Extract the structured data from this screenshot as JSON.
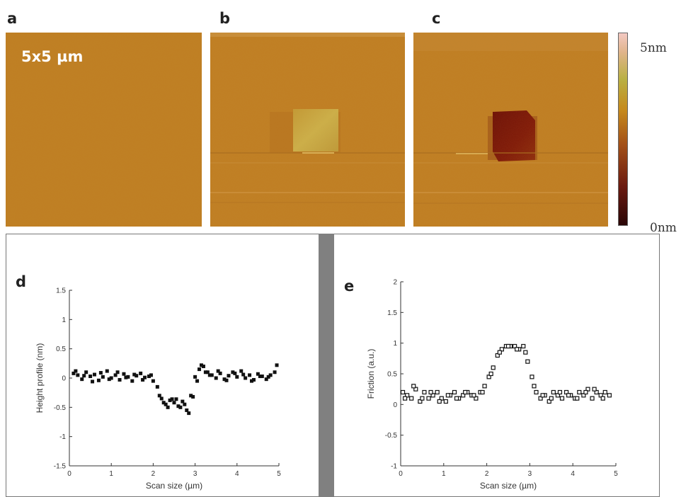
{
  "panels": {
    "a": "a",
    "b": "b",
    "c": "c",
    "d": "d",
    "e": "e"
  },
  "scan_size_label": "5x5 µm",
  "colorbar": {
    "max_label": "5nm",
    "min_label": "0nm"
  },
  "colors": {
    "afm_base": "#bf7e22",
    "raised_patch": "#c9a540",
    "pit_patch": "#7a1208",
    "marker": "#111111"
  },
  "chart_data": [
    {
      "type": "scatter",
      "panel": "d",
      "title": "",
      "xlabel": "Scan size (µm)",
      "ylabel": "Height profile (nm)",
      "xlim": [
        0,
        5
      ],
      "ylim": [
        -1.5,
        1.5
      ],
      "xticks": [
        0,
        1,
        2,
        3,
        4,
        5
      ],
      "yticks": [
        -1.5,
        -1,
        -0.5,
        0,
        0.5,
        1,
        1.5
      ],
      "marker": "filled-square",
      "x": [
        0.1,
        0.2,
        0.3,
        0.4,
        0.5,
        0.6,
        0.7,
        0.8,
        0.9,
        1.0,
        1.1,
        1.2,
        1.3,
        1.4,
        1.5,
        1.6,
        1.7,
        1.8,
        1.9,
        2.0,
        2.1,
        2.2,
        2.3,
        2.4,
        2.5,
        2.6,
        2.7,
        2.8,
        2.9,
        3.0,
        3.1,
        3.2,
        3.3,
        3.4,
        3.5,
        3.6,
        3.7,
        3.8,
        3.9,
        4.0,
        4.1,
        4.2,
        4.3,
        4.4,
        4.5,
        4.6,
        4.7,
        4.8,
        4.9,
        0.15,
        0.35,
        0.55,
        0.75,
        0.95,
        1.15,
        1.35,
        1.55,
        1.75,
        1.95,
        2.15,
        2.35,
        2.55,
        2.75,
        2.95,
        3.15,
        3.35,
        3.55,
        3.75,
        3.95,
        4.15,
        4.35,
        4.55,
        4.75,
        4.95,
        2.25,
        2.45,
        2.65,
        2.85,
        3.05,
        3.25
      ],
      "y": [
        0.08,
        0.05,
        -0.02,
        0.1,
        0.03,
        0.06,
        -0.04,
        0.02,
        0.12,
        0.0,
        0.05,
        -0.03,
        0.07,
        0.02,
        -0.05,
        0.04,
        0.08,
        0.01,
        0.03,
        -0.05,
        -0.15,
        -0.35,
        -0.45,
        -0.38,
        -0.42,
        -0.48,
        -0.4,
        -0.55,
        -0.3,
        0.02,
        0.15,
        0.2,
        0.1,
        0.05,
        0.0,
        0.08,
        -0.02,
        0.04,
        0.1,
        0.02,
        0.12,
        0.0,
        0.05,
        -0.03,
        0.07,
        0.03,
        -0.02,
        0.05,
        0.1,
        0.12,
        0.04,
        -0.06,
        0.09,
        -0.02,
        0.1,
        0.01,
        0.06,
        -0.03,
        0.05,
        -0.3,
        -0.5,
        -0.36,
        -0.45,
        -0.32,
        0.22,
        0.05,
        0.12,
        -0.04,
        0.08,
        0.06,
        -0.05,
        0.03,
        0.02,
        0.22,
        -0.42,
        -0.36,
        -0.5,
        -0.6,
        -0.05,
        0.1
      ]
    },
    {
      "type": "scatter",
      "panel": "e",
      "title": "",
      "xlabel": "Scan size (µm)",
      "ylabel": "Friction (a.u.)",
      "xlim": [
        0,
        5
      ],
      "ylim": [
        -1,
        2
      ],
      "xticks": [
        0,
        1,
        2,
        3,
        4,
        5
      ],
      "yticks": [
        -1,
        -0.5,
        0,
        0.5,
        1,
        1.5,
        2
      ],
      "marker": "open-square",
      "x": [
        0.05,
        0.15,
        0.25,
        0.35,
        0.45,
        0.55,
        0.65,
        0.75,
        0.85,
        0.95,
        1.05,
        1.15,
        1.25,
        1.35,
        1.45,
        1.55,
        1.65,
        1.75,
        1.85,
        1.95,
        2.05,
        2.15,
        2.25,
        2.35,
        2.45,
        2.55,
        2.65,
        2.75,
        2.85,
        2.95,
        3.05,
        3.15,
        3.25,
        3.35,
        3.45,
        3.55,
        3.65,
        3.75,
        3.85,
        3.95,
        4.05,
        4.15,
        4.25,
        4.35,
        4.45,
        4.55,
        4.65,
        4.75,
        4.85,
        0.1,
        0.3,
        0.5,
        0.7,
        0.9,
        1.1,
        1.3,
        1.5,
        1.7,
        1.9,
        2.1,
        2.3,
        2.5,
        2.7,
        2.9,
        3.1,
        3.3,
        3.5,
        3.7,
        3.9,
        4.1,
        4.3,
        4.5,
        4.7
      ],
      "y": [
        0.2,
        0.15,
        0.1,
        0.25,
        0.05,
        0.2,
        0.1,
        0.15,
        0.2,
        0.1,
        0.05,
        0.15,
        0.2,
        0.1,
        0.15,
        0.2,
        0.15,
        0.1,
        0.2,
        0.3,
        0.45,
        0.6,
        0.8,
        0.9,
        0.95,
        0.95,
        0.95,
        0.9,
        0.95,
        0.7,
        0.45,
        0.2,
        0.1,
        0.15,
        0.05,
        0.2,
        0.15,
        0.1,
        0.2,
        0.15,
        0.1,
        0.2,
        0.15,
        0.25,
        0.1,
        0.2,
        0.15,
        0.2,
        0.15,
        0.1,
        0.3,
        0.1,
        0.2,
        0.05,
        0.15,
        0.1,
        0.2,
        0.15,
        0.2,
        0.5,
        0.85,
        0.95,
        0.9,
        0.85,
        0.3,
        0.15,
        0.1,
        0.2,
        0.15,
        0.1,
        0.2,
        0.25,
        0.1
      ]
    }
  ]
}
